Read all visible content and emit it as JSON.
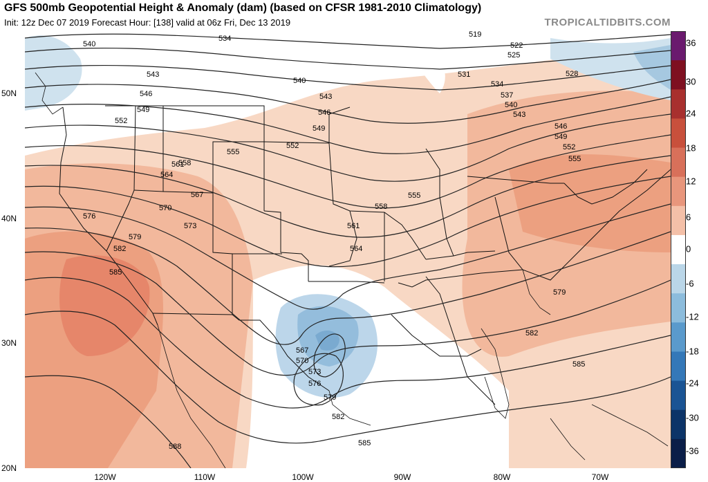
{
  "header": {
    "title": "GFS 500mb Geopotential Height & Anomaly (dam) (based on CFSR 1981-2010 Climatology)",
    "subtitle": "Init: 12z Dec 07 2019   Forecast Hour: [138]   valid at 06z Fri, Dec 13 2019",
    "credit": "TROPICALTIDBITS.COM"
  },
  "map": {
    "lat_labels": [
      "50N",
      "40N",
      "30N",
      "20N"
    ],
    "lon_labels": [
      "120W",
      "110W",
      "100W",
      "90W",
      "80W",
      "70W"
    ],
    "contour_labels": [
      "519",
      "522",
      "525",
      "528",
      "531",
      "534",
      "537",
      "540",
      "543",
      "546",
      "549",
      "552",
      "555",
      "558",
      "561",
      "564",
      "567",
      "570",
      "573",
      "576",
      "579",
      "582",
      "585",
      "588"
    ]
  },
  "colorbar": {
    "labels": [
      "36",
      "30",
      "24",
      "18",
      "12",
      "6",
      "0",
      "-6",
      "-12",
      "-18",
      "-24",
      "-30",
      "-36"
    ],
    "colors": [
      "#6a1a6e",
      "#7e1020",
      "#a8302e",
      "#c8503c",
      "#d8705a",
      "#e8967c",
      "#f4c0a8",
      "#ffffff",
      "#bad6e8",
      "#8cbcdc",
      "#5a9acc",
      "#3478b8",
      "#1a5494",
      "#0c3468",
      "#0a1e48"
    ]
  }
}
